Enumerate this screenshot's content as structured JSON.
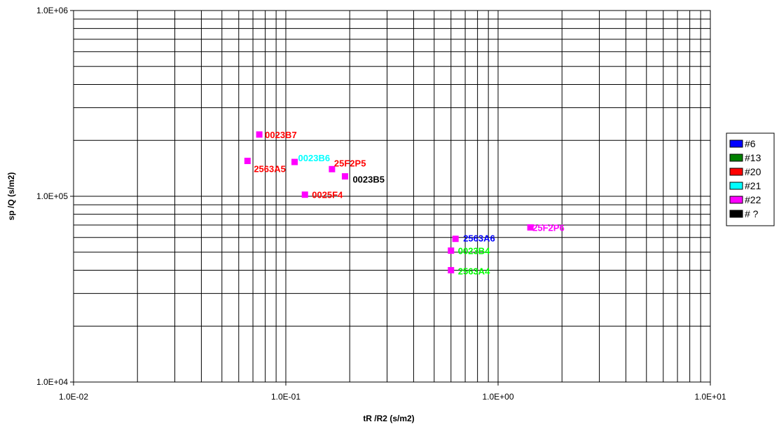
{
  "chart_data": {
    "type": "scatter",
    "title": "",
    "xlabel": "tR /R2 (s/m2)",
    "ylabel": "sp /Q (s/m2)",
    "xscale": "log",
    "yscale": "log",
    "xlim": [
      0.01,
      10
    ],
    "ylim": [
      10000,
      1000000
    ],
    "grid": true,
    "x_tick_labels": [
      "1.0E-02",
      "1.0E-01",
      "1.0E+00",
      "1.0E+01"
    ],
    "y_tick_labels": [
      "1.0E+04",
      "1.0E+05",
      "1.0E+06"
    ],
    "legend_position": "right",
    "legend": [
      {
        "label": "#6",
        "color": "#0000ff"
      },
      {
        "label": "#13",
        "color": "#008000"
      },
      {
        "label": "#20",
        "color": "#ff0000"
      },
      {
        "label": "#21",
        "color": "#00ffff"
      },
      {
        "label": "#22",
        "color": "#ff00ff"
      },
      {
        "label": "# ?",
        "color": "#000000"
      }
    ],
    "marker_color": "#ff00ff",
    "points": [
      {
        "x": 0.075,
        "y": 215000,
        "label": "0023B7",
        "label_color": "#ff0000"
      },
      {
        "x": 0.066,
        "y": 155000,
        "label": "2563A5",
        "label_color": "#ff0000"
      },
      {
        "x": 0.11,
        "y": 153000,
        "label": "0023B6",
        "label_color": "#00ffff"
      },
      {
        "x": 0.165,
        "y": 140000,
        "label": "25F2P5",
        "label_color": "#ff0000"
      },
      {
        "x": 0.19,
        "y": 128000,
        "label": "0023B5",
        "label_color": "#000000"
      },
      {
        "x": 0.123,
        "y": 102000,
        "label": "0025F4",
        "label_color": "#ff0000"
      },
      {
        "x": 0.63,
        "y": 59000,
        "label": "2563A6",
        "label_color": "#0000ff"
      },
      {
        "x": 0.6,
        "y": 51000,
        "label": "0023B4",
        "label_color": "#00ff00"
      },
      {
        "x": 0.6,
        "y": 40000,
        "label": "2563A4",
        "label_color": "#00ff00"
      },
      {
        "x": 1.42,
        "y": 68000,
        "label": "25F2P6",
        "label_color": "#ff00ff"
      }
    ]
  }
}
